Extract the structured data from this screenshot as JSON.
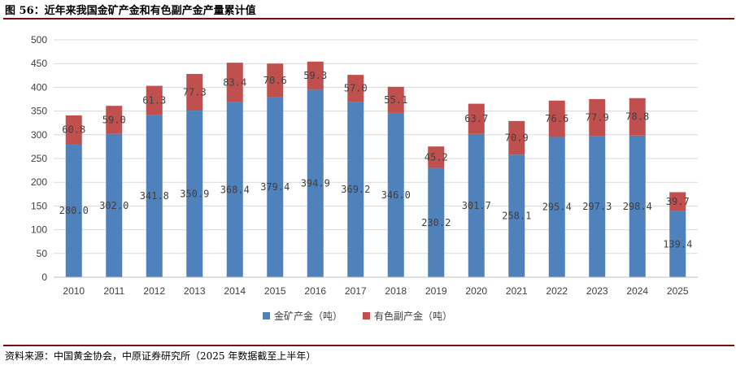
{
  "title": "图 56：近年来我国金矿产金和有色副产金产量累计值",
  "source": "资料来源：中国黄金协会，中原证券研究所（2025 年数据截至上半年）",
  "chart_data": {
    "type": "bar",
    "stacked": true,
    "categories": [
      "2010",
      "2011",
      "2012",
      "2013",
      "2014",
      "2015",
      "2016",
      "2017",
      "2018",
      "2019",
      "2020",
      "2021",
      "2022",
      "2023",
      "2024",
      "2025"
    ],
    "series": [
      {
        "name": "金矿产金（吨）",
        "color": "#4f81bd",
        "values": [
          280.0,
          302.0,
          341.8,
          350.9,
          368.4,
          379.4,
          394.9,
          369.2,
          346.0,
          230.2,
          301.7,
          258.1,
          295.4,
          297.3,
          298.4,
          139.4
        ]
      },
      {
        "name": "有色副产金（吨）",
        "color": "#c0504d",
        "values": [
          60.8,
          59.0,
          61.3,
          77.3,
          83.4,
          70.6,
          59.3,
          57.0,
          55.1,
          45.2,
          63.7,
          70.9,
          76.6,
          77.9,
          78.8,
          39.7
        ]
      }
    ],
    "ylim": [
      0,
      500
    ],
    "yticks": [
      0,
      50,
      100,
      150,
      200,
      250,
      300,
      350,
      400,
      450,
      500
    ],
    "grid": true,
    "legend": "bottom"
  }
}
